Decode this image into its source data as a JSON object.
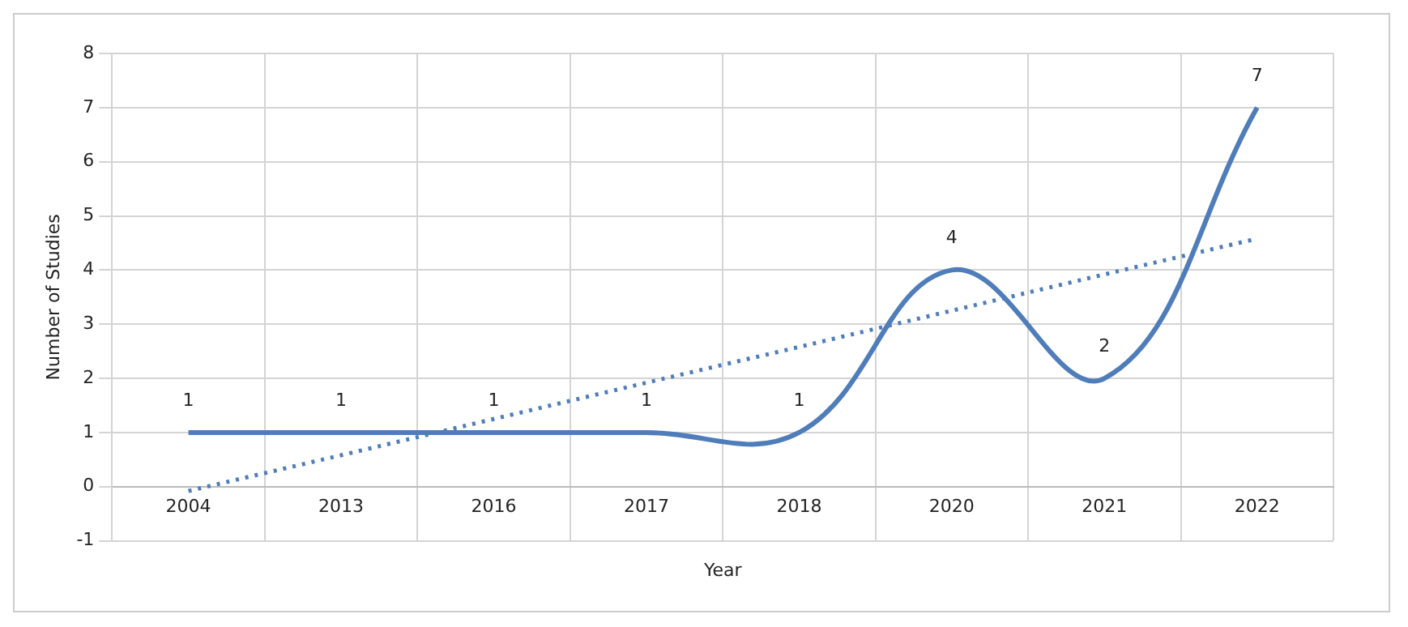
{
  "chart_data": {
    "type": "line",
    "xlabel": "Year",
    "ylabel": "Number of Studies",
    "categories": [
      "2004",
      "2013",
      "2016",
      "2017",
      "2018",
      "2020",
      "2021",
      "2022"
    ],
    "series": [
      {
        "color": "#4f7dba",
        "values": [
          1,
          1,
          1,
          1,
          1,
          4,
          2,
          7
        ],
        "data_labels": true
      },
      {
        "color": "#4f7dba",
        "line_style": "dotted",
        "values": [
          -0.08,
          0.58,
          1.25,
          1.92,
          2.58,
          3.25,
          3.92,
          4.58
        ]
      }
    ],
    "ylim": [
      -1,
      8
    ],
    "yticks": [
      -1,
      0,
      1,
      2,
      3,
      4,
      5,
      6,
      7,
      8
    ],
    "grid": true,
    "legend": false
  }
}
